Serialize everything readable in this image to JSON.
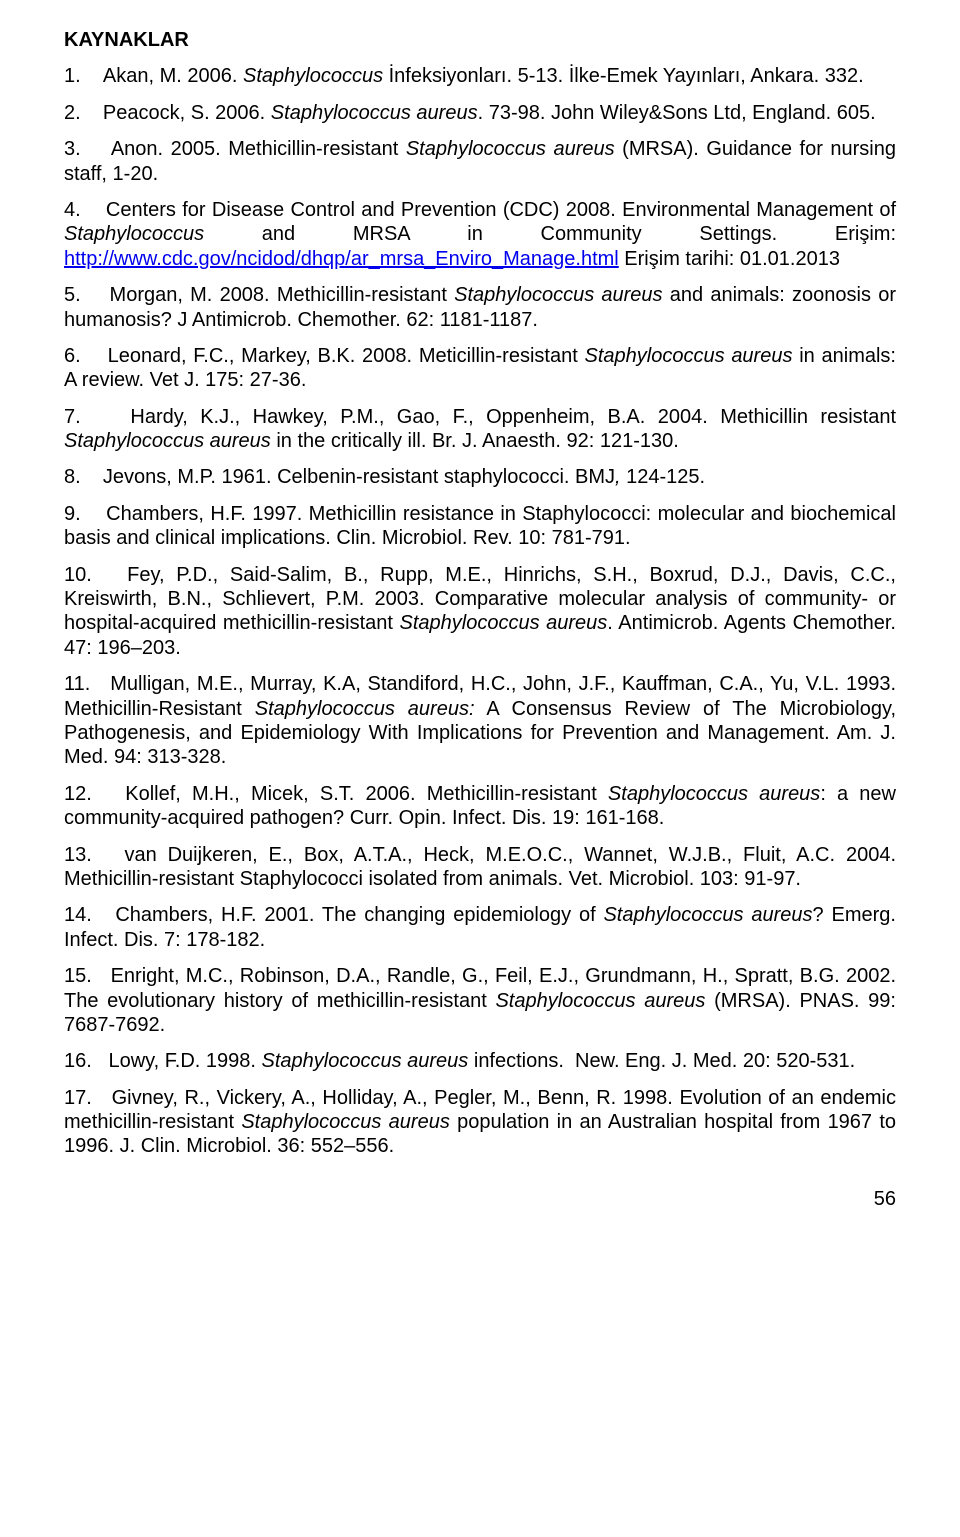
{
  "title": "KAYNAKLAR",
  "pagenum": "56",
  "link_url": "http://www.cdc.gov/ncidod/dhqp/ar_mrsa_Enviro_Manage.html",
  "refs": {
    "r1a": "1.    Akan, M. 2006. ",
    "r1b": "Staphylococcus",
    "r1c": " İnfeksiyonları. 5-13. İlke-Emek Yayınları, Ankara. 332.",
    "r2a": "2.    Peacock, S. 2006. ",
    "r2b": "Staphylococcus aureus",
    "r2c": ". 73-98. John Wiley&Sons Ltd, England. 605.",
    "r3a": "3.    Anon. 2005. Methicillin-resistant ",
    "r3b": "Staphylococcus aureus",
    "r3c": " (MRSA). Guidance for nursing staff, 1-20.",
    "r4a": "4.    Centers for Disease Control and Prevention (CDC) 2008. Environmental Management of ",
    "r4b": "Staphylococcus",
    "r4c": " and MRSA in Community Settings. Erişim: ",
    "r4d": " Erişim tarihi: 01.01.2013",
    "r5a": "5.    Morgan, M. 2008. Methicillin-resistant ",
    "r5b": "Staphylococcus aureus",
    "r5c": " and animals: zoonosis or humanosis? J Antimicrob. Chemother. 62: 1181-1187.",
    "r6a": "6.    Leonard, F.C., Markey, B.K. 2008. Meticillin-resistant ",
    "r6b": "Staphylococcus aureus",
    "r6c": " in animals: A review. Vet J. 175: 27-36.",
    "r7a": "7.    Hardy, K.J., Hawkey, P.M., Gao, F., Oppenheim, B.A. 2004. Methicillin resistant ",
    "r7b": "Staphylococcus aureus",
    "r7c": " in the critically ill. Br. J. Anaesth. 92: 121-130.",
    "r8a": "8.    Jevons, M.P. 1961. Celbenin-resistant staphylococci. BMJ",
    "r8b": ",",
    "r8c": " 124-125.",
    "r9a": "9.    Chambers, H.F. 1997. Methicillin resistance in Staphylococci: molecular and biochemical basis and clinical implications. Clin. Microbiol. Rev. 10: 781-791.",
    "r10a": "10.   Fey, P.D., Said-Salim, B., Rupp, M.E., Hinrichs, S.H., Boxrud, D.J., Davis, C.C., Kreiswirth, B.N., Schlievert, P.M. 2003. Comparative molecular analysis of community- or hospital-acquired methicillin-resistant ",
    "r10b": "Staphylococcus aureus",
    "r10c": ". Antimicrob. Agents Chemother. 47: 196–203.",
    "r11a": "11.   Mulligan, M.E., Murray, K.A, Standiford, H.C., John, J.F., Kauffman, C.A., Yu, V.L. 1993. Methicillin-Resistant ",
    "r11b": "Staphylococcus aureus:",
    "r11c": " A Consensus Review of The Microbiology, Pathogenesis, and Epidemiology With Implications for Prevention and Management. Am. J. Med. 94: 313-328.",
    "r12a": "12.   Kollef, M.H., Micek, S.T. 2006. Methicillin-resistant ",
    "r12b": "Staphylococcus aureus",
    "r12c": ": a new community-acquired pathogen? Curr. Opin. Infect. Dis. 19: 161-168.",
    "r13a": "13.   van Duijkeren, E., Box, A.T.A., Heck, M.E.O.C., Wannet, W.J.B., Fluit, A.C. 2004. Methicillin-resistant Staphylococci isolated from animals. Vet. Microbiol. 103: 91-97.",
    "r14a": "14.   Chambers, H.F. 2001. The changing epidemiology of ",
    "r14b": "Staphylococcus aureus",
    "r14c": "? Emerg. Infect. Dis. 7: 178-182.",
    "r15a": "15.   Enright, M.C., Robinson, D.A., Randle, G., Feil, E.J., Grundmann, H., Spratt, B.G. 2002. The evolutionary history of methicillin-resistant ",
    "r15b": "Staphylococcus aureus",
    "r15c": " (MRSA). PNAS. 99: 7687-7692.",
    "r16a": "16.   Lowy, F.D. 1998. ",
    "r16b": "Staphylococcus aureus",
    "r16c": " infections.  New. Eng. J. Med. 20: 520-531.",
    "r17a": "17.   Givney, R., Vickery, A., Holliday, A., Pegler, M., Benn, R. 1998. Evolution of an endemic methicillin-resistant ",
    "r17b": "Staphylococcus aureus",
    "r17c": " population in an Australian hospital from 1967 to 1996. J. Clin. Microbiol. 36: 552–556."
  }
}
